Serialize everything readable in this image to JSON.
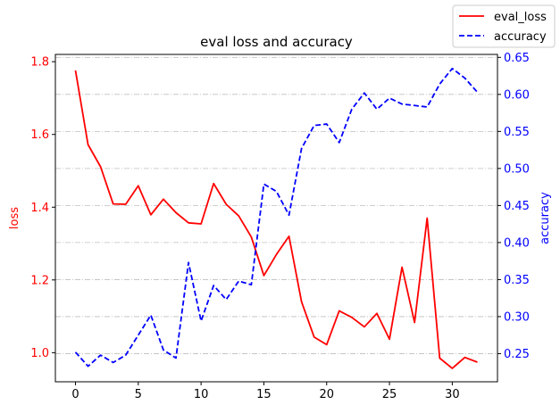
{
  "chart_data": {
    "type": "line",
    "title": "eval loss and accuracy",
    "xlabel": "",
    "ylabel_left": "loss",
    "ylabel_right": "accuracy",
    "xlim": [
      -1.6,
      33.6
    ],
    "ylim_left": [
      0.92,
      1.82
    ],
    "ylim_right": [
      0.212,
      0.654
    ],
    "x_ticks": [
      0,
      5,
      10,
      15,
      20,
      25,
      30
    ],
    "y_ticks_left": [
      1.0,
      1.2,
      1.4,
      1.6,
      1.8
    ],
    "y_ticks_right": [
      0.25,
      0.3,
      0.35,
      0.4,
      0.45,
      0.5,
      0.55,
      0.6,
      0.65
    ],
    "grid": "horizontal dash-dot (right axis)",
    "legend_placement": "top-right (outside)",
    "x": [
      0,
      1,
      2,
      3,
      4,
      5,
      6,
      7,
      8,
      9,
      10,
      11,
      12,
      13,
      14,
      15,
      16,
      17,
      18,
      19,
      20,
      21,
      22,
      23,
      24,
      25,
      26,
      27,
      28,
      29,
      30,
      31,
      32
    ],
    "series": [
      {
        "name": "eval_loss",
        "axis": "left",
        "color": "#ff0000",
        "style": "solid",
        "values": [
          1.776,
          1.572,
          1.511,
          1.409,
          1.408,
          1.459,
          1.379,
          1.422,
          1.385,
          1.357,
          1.354,
          1.465,
          1.408,
          1.376,
          1.318,
          1.212,
          1.27,
          1.32,
          1.14,
          1.043,
          1.022,
          1.115,
          1.097,
          1.071,
          1.108,
          1.037,
          1.235,
          1.083,
          1.37,
          0.985,
          0.957,
          0.987,
          0.974
        ]
      },
      {
        "name": "accuracy",
        "axis": "right",
        "color": "#0000ff",
        "style": "dashed",
        "values": [
          0.252,
          0.233,
          0.248,
          0.238,
          0.248,
          0.275,
          0.302,
          0.255,
          0.244,
          0.373,
          0.294,
          0.342,
          0.323,
          0.348,
          0.343,
          0.479,
          0.469,
          0.437,
          0.527,
          0.558,
          0.56,
          0.535,
          0.58,
          0.602,
          0.58,
          0.595,
          0.587,
          0.585,
          0.583,
          0.614,
          0.635,
          0.622,
          0.603
        ]
      }
    ]
  }
}
